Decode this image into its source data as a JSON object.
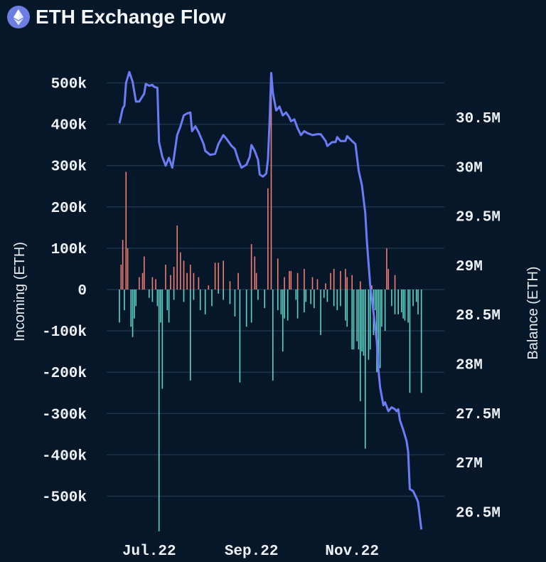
{
  "title": "ETH Exchange Flow",
  "icon": "ethereum-icon",
  "colors": {
    "background": "#051729",
    "inflow": "#f07c72",
    "outflow": "#5fd3c5",
    "balance": "#6b7cf5",
    "grid": "#1c3448"
  },
  "chart_data": {
    "type": "bar+line",
    "title": "ETH Exchange Flow",
    "xlim": [
      "2022-06-13",
      "2022-12-14"
    ],
    "x_ticks": [
      {
        "date": "2022-07-01",
        "label": "Jul.22"
      },
      {
        "date": "2022-09-01",
        "label": "Sep.22"
      },
      {
        "date": "2022-11-01",
        "label": "Nov.22"
      }
    ],
    "y_left": {
      "label": "Incoming (ETH)",
      "ylim": [
        -590,
        560
      ],
      "unit": "k",
      "ticks": [
        {
          "v": 500,
          "label": "500k"
        },
        {
          "v": 400,
          "label": "400k"
        },
        {
          "v": 300,
          "label": "300k"
        },
        {
          "v": 200,
          "label": "200k"
        },
        {
          "v": 100,
          "label": "100k"
        },
        {
          "v": 0,
          "label": "0"
        },
        {
          "v": -100,
          "label": "-100k"
        },
        {
          "v": -200,
          "label": "-200k"
        },
        {
          "v": -300,
          "label": "-300k"
        },
        {
          "v": -400,
          "label": "-400k"
        },
        {
          "v": -500,
          "label": "-500k"
        }
      ]
    },
    "y_right": {
      "label": "Balance (ETH)",
      "unit": "M",
      "ticks": [
        {
          "v": 30.5,
          "label": "30.5M"
        },
        {
          "v": 30,
          "label": "30M"
        },
        {
          "v": 29.5,
          "label": "29.5M"
        },
        {
          "v": 29,
          "label": "29M"
        },
        {
          "v": 28.5,
          "label": "28.5M"
        },
        {
          "v": 28,
          "label": "28M"
        },
        {
          "v": 27.5,
          "label": "27.5M"
        },
        {
          "v": 27,
          "label": "27M"
        },
        {
          "v": 26.5,
          "label": "26.5M"
        }
      ]
    },
    "grid": true,
    "inflow": [
      [
        "2022-06-14",
        60
      ],
      [
        "2022-06-15",
        120
      ],
      [
        "2022-06-17",
        285
      ],
      [
        "2022-06-18",
        100
      ],
      [
        "2022-06-25",
        30
      ],
      [
        "2022-06-27",
        40
      ],
      [
        "2022-06-28",
        80
      ],
      [
        "2022-07-03",
        30
      ],
      [
        "2022-07-05",
        25
      ],
      [
        "2022-07-11",
        60
      ],
      [
        "2022-07-14",
        35
      ],
      [
        "2022-07-16",
        55
      ],
      [
        "2022-07-18",
        155
      ],
      [
        "2022-07-20",
        90
      ],
      [
        "2022-07-22",
        70
      ],
      [
        "2022-07-24",
        40
      ],
      [
        "2022-07-26",
        60
      ],
      [
        "2022-07-28",
        40
      ],
      [
        "2022-07-31",
        30
      ],
      [
        "2022-08-06",
        10
      ],
      [
        "2022-08-10",
        65
      ],
      [
        "2022-08-12",
        65
      ],
      [
        "2022-08-15",
        70
      ],
      [
        "2022-08-19",
        20
      ],
      [
        "2022-08-24",
        40
      ],
      [
        "2022-09-01",
        110
      ],
      [
        "2022-09-03",
        80
      ],
      [
        "2022-09-04",
        40
      ],
      [
        "2022-09-11",
        245
      ],
      [
        "2022-09-13",
        520
      ],
      [
        "2022-09-17",
        75
      ],
      [
        "2022-09-21",
        30
      ],
      [
        "2022-09-24",
        45
      ],
      [
        "2022-09-25",
        45
      ],
      [
        "2022-09-29",
        40
      ],
      [
        "2022-10-03",
        50
      ],
      [
        "2022-10-08",
        30
      ],
      [
        "2022-10-11",
        25
      ],
      [
        "2022-10-16",
        15
      ],
      [
        "2022-10-19",
        40
      ],
      [
        "2022-10-21",
        50
      ],
      [
        "2022-10-25",
        45
      ],
      [
        "2022-10-28",
        50
      ],
      [
        "2022-10-29",
        30
      ],
      [
        "2022-11-01",
        35
      ],
      [
        "2022-11-06",
        20
      ],
      [
        "2022-11-13",
        10
      ],
      [
        "2022-11-22",
        100
      ],
      [
        "2022-11-23",
        50
      ],
      [
        "2022-11-27",
        35
      ]
    ],
    "outflow": [
      [
        "2022-06-13",
        -80
      ],
      [
        "2022-06-16",
        -50
      ],
      [
        "2022-06-20",
        -90
      ],
      [
        "2022-06-21",
        -115
      ],
      [
        "2022-06-22",
        -70
      ],
      [
        "2022-06-23",
        -40
      ],
      [
        "2022-07-01",
        -20
      ],
      [
        "2022-07-03",
        -30
      ],
      [
        "2022-07-06",
        -40
      ],
      [
        "2022-07-07",
        -585
      ],
      [
        "2022-07-08",
        -80
      ],
      [
        "2022-07-09",
        -240
      ],
      [
        "2022-07-12",
        -50
      ],
      [
        "2022-07-13",
        -80
      ],
      [
        "2022-07-16",
        -25
      ],
      [
        "2022-07-22",
        -30
      ],
      [
        "2022-07-26",
        -220
      ],
      [
        "2022-07-28",
        -25
      ],
      [
        "2022-08-01",
        -50
      ],
      [
        "2022-08-04",
        -60
      ],
      [
        "2022-08-08",
        -40
      ],
      [
        "2022-08-12",
        -10
      ],
      [
        "2022-08-15",
        -25
      ],
      [
        "2022-08-19",
        -35
      ],
      [
        "2022-08-22",
        -65
      ],
      [
        "2022-08-25",
        -225
      ],
      [
        "2022-08-29",
        -90
      ],
      [
        "2022-09-01",
        -80
      ],
      [
        "2022-09-05",
        -25
      ],
      [
        "2022-09-09",
        -45
      ],
      [
        "2022-09-14",
        -220
      ],
      [
        "2022-09-17",
        -50
      ],
      [
        "2022-09-19",
        -60
      ],
      [
        "2022-09-20",
        -150
      ],
      [
        "2022-09-21",
        -70
      ],
      [
        "2022-09-23",
        -75
      ],
      [
        "2022-09-28",
        -25
      ],
      [
        "2022-09-29",
        -70
      ],
      [
        "2022-10-03",
        -55
      ],
      [
        "2022-10-04",
        -30
      ],
      [
        "2022-10-07",
        -35
      ],
      [
        "2022-10-09",
        -45
      ],
      [
        "2022-10-13",
        -110
      ],
      [
        "2022-10-15",
        -20
      ],
      [
        "2022-10-17",
        -30
      ],
      [
        "2022-10-21",
        -40
      ],
      [
        "2022-10-23",
        -50
      ],
      [
        "2022-10-25",
        -40
      ],
      [
        "2022-10-28",
        -75
      ],
      [
        "2022-10-29",
        -90
      ],
      [
        "2022-11-01",
        -145
      ],
      [
        "2022-11-02",
        -145
      ],
      [
        "2022-11-04",
        -125
      ],
      [
        "2022-11-05",
        -145
      ],
      [
        "2022-11-06",
        -270
      ],
      [
        "2022-11-07",
        -150
      ],
      [
        "2022-11-08",
        -160
      ],
      [
        "2022-11-09",
        -385
      ],
      [
        "2022-11-11",
        -170
      ],
      [
        "2022-11-12",
        -145
      ],
      [
        "2022-11-14",
        -110
      ],
      [
        "2022-11-15",
        -50
      ],
      [
        "2022-11-16",
        -200
      ],
      [
        "2022-11-17",
        -200
      ],
      [
        "2022-11-18",
        -190
      ],
      [
        "2022-11-19",
        -90
      ],
      [
        "2022-11-21",
        -100
      ],
      [
        "2022-11-25",
        -40
      ],
      [
        "2022-11-27",
        -60
      ],
      [
        "2022-11-29",
        -60
      ],
      [
        "2022-12-01",
        -55
      ],
      [
        "2022-12-02",
        -70
      ],
      [
        "2022-12-03",
        -75
      ],
      [
        "2022-12-05",
        -80
      ],
      [
        "2022-12-06",
        -250
      ],
      [
        "2022-12-08",
        -40
      ],
      [
        "2022-12-10",
        -30
      ],
      [
        "2022-12-11",
        -60
      ],
      [
        "2022-12-13",
        -250
      ]
    ],
    "balance": [
      [
        "2022-06-13",
        30.44
      ],
      [
        "2022-06-15",
        30.59
      ],
      [
        "2022-06-16",
        30.62
      ],
      [
        "2022-06-17",
        30.85
      ],
      [
        "2022-06-19",
        30.96
      ],
      [
        "2022-06-21",
        30.86
      ],
      [
        "2022-06-23",
        30.66
      ],
      [
        "2022-06-25",
        30.66
      ],
      [
        "2022-06-28",
        30.74
      ],
      [
        "2022-06-29",
        30.84
      ],
      [
        "2022-07-01",
        30.82
      ],
      [
        "2022-07-03",
        30.83
      ],
      [
        "2022-07-04",
        30.81
      ],
      [
        "2022-07-06",
        30.8
      ],
      [
        "2022-07-07",
        30.25
      ],
      [
        "2022-07-09",
        30.1
      ],
      [
        "2022-07-11",
        30.01
      ],
      [
        "2022-07-13",
        30.09
      ],
      [
        "2022-07-15",
        29.99
      ],
      [
        "2022-07-16",
        30.09
      ],
      [
        "2022-07-18",
        30.32
      ],
      [
        "2022-07-20",
        30.41
      ],
      [
        "2022-07-22",
        30.52
      ],
      [
        "2022-07-24",
        30.54
      ],
      [
        "2022-07-26",
        30.55
      ],
      [
        "2022-07-27",
        30.36
      ],
      [
        "2022-07-29",
        30.41
      ],
      [
        "2022-07-31",
        30.35
      ],
      [
        "2022-08-03",
        30.23
      ],
      [
        "2022-08-04",
        30.16
      ],
      [
        "2022-08-07",
        30.12
      ],
      [
        "2022-08-10",
        30.13
      ],
      [
        "2022-08-12",
        30.23
      ],
      [
        "2022-08-15",
        30.32
      ],
      [
        "2022-08-17",
        30.28
      ],
      [
        "2022-08-20",
        30.21
      ],
      [
        "2022-08-22",
        30.18
      ],
      [
        "2022-08-24",
        30.07
      ],
      [
        "2022-08-26",
        29.99
      ],
      [
        "2022-08-29",
        30.02
      ],
      [
        "2022-08-31",
        30.1
      ],
      [
        "2022-09-01",
        30.22
      ],
      [
        "2022-09-03",
        30.16
      ],
      [
        "2022-09-05",
        30.07
      ],
      [
        "2022-09-06",
        29.92
      ],
      [
        "2022-09-08",
        29.9
      ],
      [
        "2022-09-10",
        29.93
      ],
      [
        "2022-09-11",
        30.07
      ],
      [
        "2022-09-12",
        30.46
      ],
      [
        "2022-09-13",
        30.95
      ],
      [
        "2022-09-14",
        30.75
      ],
      [
        "2022-09-16",
        30.57
      ],
      [
        "2022-09-18",
        30.61
      ],
      [
        "2022-09-20",
        30.52
      ],
      [
        "2022-09-22",
        30.55
      ],
      [
        "2022-09-24",
        30.5
      ],
      [
        "2022-09-25",
        30.46
      ],
      [
        "2022-09-27",
        30.48
      ],
      [
        "2022-09-29",
        30.39
      ],
      [
        "2022-10-01",
        30.32
      ],
      [
        "2022-10-03",
        30.36
      ],
      [
        "2022-10-05",
        30.34
      ],
      [
        "2022-10-08",
        30.32
      ],
      [
        "2022-10-11",
        30.33
      ],
      [
        "2022-10-13",
        30.33
      ],
      [
        "2022-10-16",
        30.26
      ],
      [
        "2022-10-17",
        30.21
      ],
      [
        "2022-10-20",
        30.25
      ],
      [
        "2022-10-22",
        30.25
      ],
      [
        "2022-10-23",
        30.3
      ],
      [
        "2022-10-25",
        30.26
      ],
      [
        "2022-10-28",
        30.26
      ],
      [
        "2022-10-29",
        30.31
      ],
      [
        "2022-11-01",
        30.26
      ],
      [
        "2022-11-03",
        30.23
      ],
      [
        "2022-11-05",
        29.96
      ],
      [
        "2022-11-07",
        29.81
      ],
      [
        "2022-11-09",
        29.53
      ],
      [
        "2022-11-10",
        29.24
      ],
      [
        "2022-11-12",
        28.8
      ],
      [
        "2022-11-14",
        28.52
      ],
      [
        "2022-11-16",
        28.23
      ],
      [
        "2022-11-17",
        27.94
      ],
      [
        "2022-11-18",
        27.76
      ],
      [
        "2022-11-20",
        27.58
      ],
      [
        "2022-11-21",
        27.61
      ],
      [
        "2022-11-23",
        27.52
      ],
      [
        "2022-11-25",
        27.56
      ],
      [
        "2022-11-27",
        27.54
      ],
      [
        "2022-11-28",
        27.52
      ],
      [
        "2022-11-29",
        27.54
      ],
      [
        "2022-11-30",
        27.43
      ],
      [
        "2022-12-02",
        27.33
      ],
      [
        "2022-12-04",
        27.22
      ],
      [
        "2022-12-05",
        27.11
      ],
      [
        "2022-12-06",
        26.73
      ],
      [
        "2022-12-08",
        26.71
      ],
      [
        "2022-12-10",
        26.64
      ],
      [
        "2022-12-11",
        26.6
      ],
      [
        "2022-12-13",
        26.32
      ]
    ]
  }
}
